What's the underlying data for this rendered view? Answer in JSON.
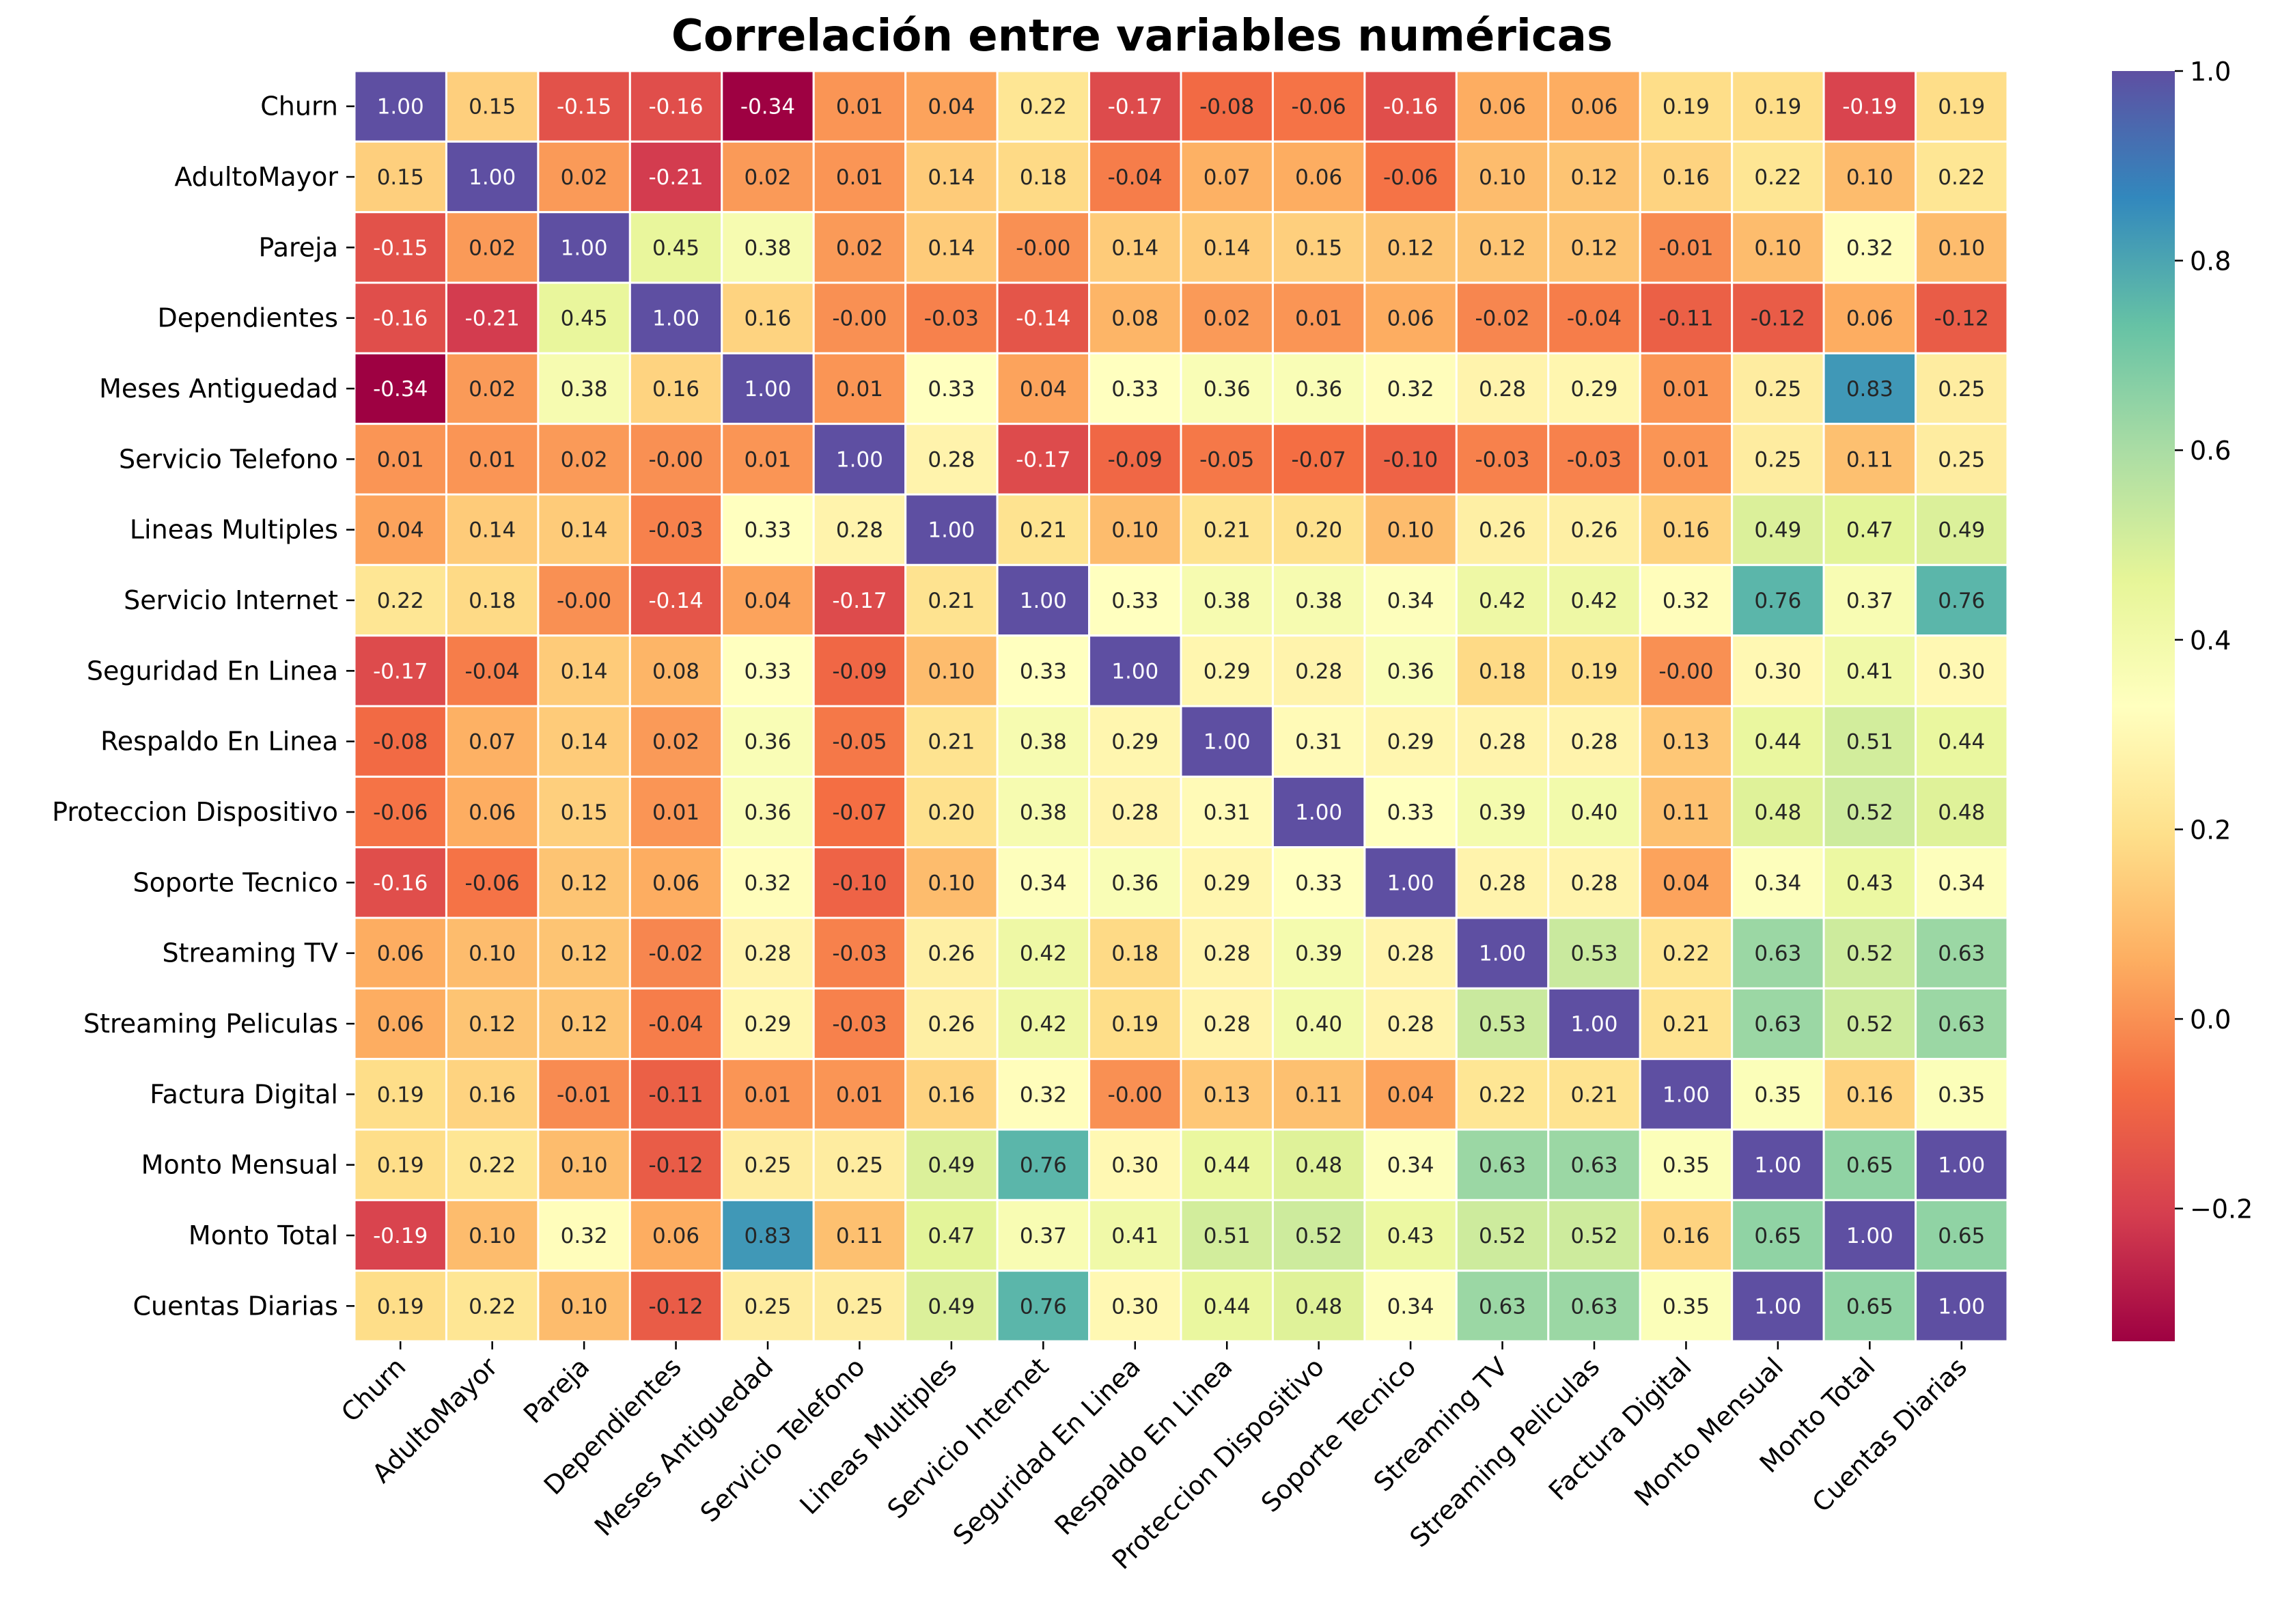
{
  "chart_data": {
    "type": "heatmap",
    "title": "Correlación entre variables numéricas",
    "xlabel": "",
    "ylabel": "",
    "row_labels": [
      "Churn",
      "AdultoMayor",
      "Pareja",
      "Dependientes",
      "Meses Antiguedad",
      "Servicio Telefono",
      "Lineas Multiples",
      "Servicio Internet",
      "Seguridad En Linea",
      "Respaldo En Linea",
      "Proteccion Dispositivo",
      "Soporte Tecnico",
      "Streaming TV",
      "Streaming Peliculas",
      "Factura Digital",
      "Monto Mensual",
      "Monto Total",
      "Cuentas Diarias"
    ],
    "col_labels": [
      "Churn",
      "AdultoMayor",
      "Pareja",
      "Dependientes",
      "Meses Antiguedad",
      "Servicio Telefono",
      "Lineas Multiples",
      "Servicio Internet",
      "Seguridad En Linea",
      "Respaldo En Linea",
      "Proteccion Dispositivo",
      "Soporte Tecnico",
      "Streaming TV",
      "Streaming Peliculas",
      "Factura Digital",
      "Monto Mensual",
      "Monto Total",
      "Cuentas Diarias"
    ],
    "cell_labels": [
      [
        "1.00",
        "0.15",
        "-0.15",
        "-0.16",
        "-0.34",
        "0.01",
        "0.04",
        "0.22",
        "-0.17",
        "-0.08",
        "-0.06",
        "-0.16",
        "0.06",
        "0.06",
        "0.19",
        "0.19",
        "-0.19",
        "0.19"
      ],
      [
        "0.15",
        "1.00",
        "0.02",
        "-0.21",
        "0.02",
        "0.01",
        "0.14",
        "0.18",
        "-0.04",
        "0.07",
        "0.06",
        "-0.06",
        "0.10",
        "0.12",
        "0.16",
        "0.22",
        "0.10",
        "0.22"
      ],
      [
        "-0.15",
        "0.02",
        "1.00",
        "0.45",
        "0.38",
        "0.02",
        "0.14",
        "-0.00",
        "0.14",
        "0.14",
        "0.15",
        "0.12",
        "0.12",
        "0.12",
        "-0.01",
        "0.10",
        "0.32",
        "0.10"
      ],
      [
        "-0.16",
        "-0.21",
        "0.45",
        "1.00",
        "0.16",
        "-0.00",
        "-0.03",
        "-0.14",
        "0.08",
        "0.02",
        "0.01",
        "0.06",
        "-0.02",
        "-0.04",
        "-0.11",
        "-0.12",
        "0.06",
        "-0.12"
      ],
      [
        "-0.34",
        "0.02",
        "0.38",
        "0.16",
        "1.00",
        "0.01",
        "0.33",
        "0.04",
        "0.33",
        "0.36",
        "0.36",
        "0.32",
        "0.28",
        "0.29",
        "0.01",
        "0.25",
        "0.83",
        "0.25"
      ],
      [
        "0.01",
        "0.01",
        "0.02",
        "-0.00",
        "0.01",
        "1.00",
        "0.28",
        "-0.17",
        "-0.09",
        "-0.05",
        "-0.07",
        "-0.10",
        "-0.03",
        "-0.03",
        "0.01",
        "0.25",
        "0.11",
        "0.25"
      ],
      [
        "0.04",
        "0.14",
        "0.14",
        "-0.03",
        "0.33",
        "0.28",
        "1.00",
        "0.21",
        "0.10",
        "0.21",
        "0.20",
        "0.10",
        "0.26",
        "0.26",
        "0.16",
        "0.49",
        "0.47",
        "0.49"
      ],
      [
        "0.22",
        "0.18",
        "-0.00",
        "-0.14",
        "0.04",
        "-0.17",
        "0.21",
        "1.00",
        "0.33",
        "0.38",
        "0.38",
        "0.34",
        "0.42",
        "0.42",
        "0.32",
        "0.76",
        "0.37",
        "0.76"
      ],
      [
        "-0.17",
        "-0.04",
        "0.14",
        "0.08",
        "0.33",
        "-0.09",
        "0.10",
        "0.33",
        "1.00",
        "0.29",
        "0.28",
        "0.36",
        "0.18",
        "0.19",
        "-0.00",
        "0.30",
        "0.41",
        "0.30"
      ],
      [
        "-0.08",
        "0.07",
        "0.14",
        "0.02",
        "0.36",
        "-0.05",
        "0.21",
        "0.38",
        "0.29",
        "1.00",
        "0.31",
        "0.29",
        "0.28",
        "0.28",
        "0.13",
        "0.44",
        "0.51",
        "0.44"
      ],
      [
        "-0.06",
        "0.06",
        "0.15",
        "0.01",
        "0.36",
        "-0.07",
        "0.20",
        "0.38",
        "0.28",
        "0.31",
        "1.00",
        "0.33",
        "0.39",
        "0.40",
        "0.11",
        "0.48",
        "0.52",
        "0.48"
      ],
      [
        "-0.16",
        "-0.06",
        "0.12",
        "0.06",
        "0.32",
        "-0.10",
        "0.10",
        "0.34",
        "0.36",
        "0.29",
        "0.33",
        "1.00",
        "0.28",
        "0.28",
        "0.04",
        "0.34",
        "0.43",
        "0.34"
      ],
      [
        "0.06",
        "0.10",
        "0.12",
        "-0.02",
        "0.28",
        "-0.03",
        "0.26",
        "0.42",
        "0.18",
        "0.28",
        "0.39",
        "0.28",
        "1.00",
        "0.53",
        "0.22",
        "0.63",
        "0.52",
        "0.63"
      ],
      [
        "0.06",
        "0.12",
        "0.12",
        "-0.04",
        "0.29",
        "-0.03",
        "0.26",
        "0.42",
        "0.19",
        "0.28",
        "0.40",
        "0.28",
        "0.53",
        "1.00",
        "0.21",
        "0.63",
        "0.52",
        "0.63"
      ],
      [
        "0.19",
        "0.16",
        "-0.01",
        "-0.11",
        "0.01",
        "0.01",
        "0.16",
        "0.32",
        "-0.00",
        "0.13",
        "0.11",
        "0.04",
        "0.22",
        "0.21",
        "1.00",
        "0.35",
        "0.16",
        "0.35"
      ],
      [
        "0.19",
        "0.22",
        "0.10",
        "-0.12",
        "0.25",
        "0.25",
        "0.49",
        "0.76",
        "0.30",
        "0.44",
        "0.48",
        "0.34",
        "0.63",
        "0.63",
        "0.35",
        "1.00",
        "0.65",
        "1.00"
      ],
      [
        "-0.19",
        "0.10",
        "0.32",
        "0.06",
        "0.83",
        "0.11",
        "0.47",
        "0.37",
        "0.41",
        "0.51",
        "0.52",
        "0.43",
        "0.52",
        "0.52",
        "0.16",
        "0.65",
        "1.00",
        "0.65"
      ],
      [
        "0.19",
        "0.22",
        "0.10",
        "-0.12",
        "0.25",
        "0.25",
        "0.49",
        "0.76",
        "0.30",
        "0.44",
        "0.48",
        "0.34",
        "0.63",
        "0.63",
        "0.35",
        "1.00",
        "0.65",
        "1.00"
      ]
    ],
    "colormap": "Spectral",
    "vmin": -0.34,
    "vmax": 1.0,
    "colorbar_ticks": [
      "−0.2",
      "0.0",
      "0.2",
      "0.4",
      "0.6",
      "0.8",
      "1.0"
    ],
    "colorbar_tick_values": [
      -0.2,
      0.0,
      0.2,
      0.4,
      0.6,
      0.8,
      1.0
    ],
    "cell_separator_color": "#ffffff",
    "grid": false,
    "legend": "colorbar-right"
  }
}
